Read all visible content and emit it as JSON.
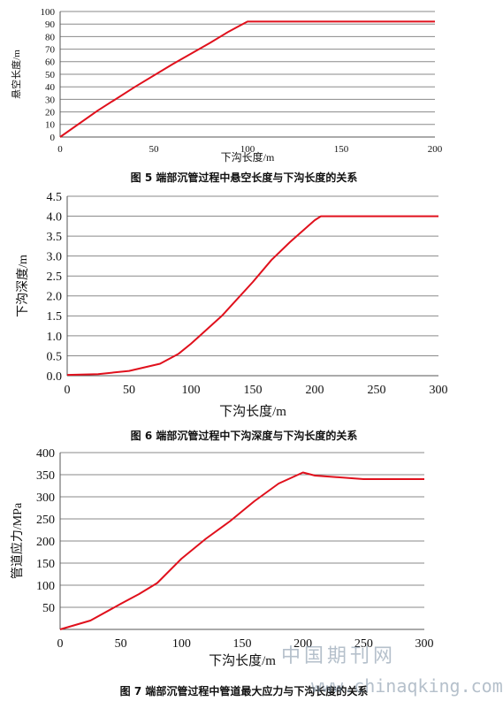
{
  "chart_data": [
    {
      "type": "line",
      "caption": "图 5 端部沉管过程中悬空长度与下沟长度的关系",
      "xlabel": "下沟长度/m",
      "ylabel": "悬空长度/m",
      "xlim": [
        0,
        200
      ],
      "ylim": [
        0,
        100
      ],
      "xticks": [
        0,
        50,
        100,
        150,
        200
      ],
      "yticks": [
        0,
        10,
        20,
        30,
        40,
        50,
        60,
        70,
        80,
        90,
        100
      ],
      "grid": "horizontal",
      "series": [
        {
          "x": [
            0,
            20,
            40,
            60,
            80,
            90,
            95,
            100,
            150,
            200
          ],
          "y": [
            0,
            21,
            40,
            58,
            75,
            84,
            88,
            92,
            92,
            92
          ]
        }
      ]
    },
    {
      "type": "line",
      "caption": "图 6 端部沉管过程中下沟深度与下沟长度的关系",
      "xlabel": "下沟长度/m",
      "ylabel": "下沟深度/m",
      "xlim": [
        0,
        300
      ],
      "ylim": [
        0,
        4.5
      ],
      "xticks": [
        0,
        50,
        100,
        150,
        200,
        250,
        300
      ],
      "yticks": [
        0.0,
        0.5,
        1.0,
        1.5,
        2.0,
        2.5,
        3.0,
        3.5,
        4.0,
        4.5
      ],
      "grid": "horizontal",
      "series": [
        {
          "x": [
            0,
            25,
            50,
            75,
            90,
            100,
            125,
            150,
            165,
            180,
            200,
            205,
            250,
            300
          ],
          "y": [
            0.02,
            0.04,
            0.12,
            0.3,
            0.55,
            0.8,
            1.5,
            2.35,
            2.9,
            3.35,
            3.9,
            4.0,
            4.0,
            4.0
          ]
        }
      ]
    },
    {
      "type": "line",
      "caption": "图 7 端部沉管过程中管道最大应力与下沟长度的关系",
      "xlabel": "下沟长度/m",
      "ylabel": "管道应力/MPa",
      "xlim": [
        0,
        300
      ],
      "ylim": [
        0,
        400
      ],
      "xticks": [
        0,
        50,
        100,
        150,
        200,
        250,
        300
      ],
      "yticks": [
        50,
        100,
        150,
        200,
        250,
        300,
        350,
        400
      ],
      "grid": "horizontal",
      "series": [
        {
          "x": [
            0,
            25,
            50,
            65,
            80,
            100,
            120,
            140,
            160,
            180,
            200,
            210,
            250,
            300
          ],
          "y": [
            0,
            20,
            58,
            80,
            105,
            160,
            205,
            245,
            290,
            330,
            355,
            348,
            340,
            340
          ]
        }
      ]
    }
  ],
  "watermark": {
    "site_name": "中国期刊网",
    "site_url": "www.chinaqking.com"
  },
  "line_color": "#e0101c"
}
